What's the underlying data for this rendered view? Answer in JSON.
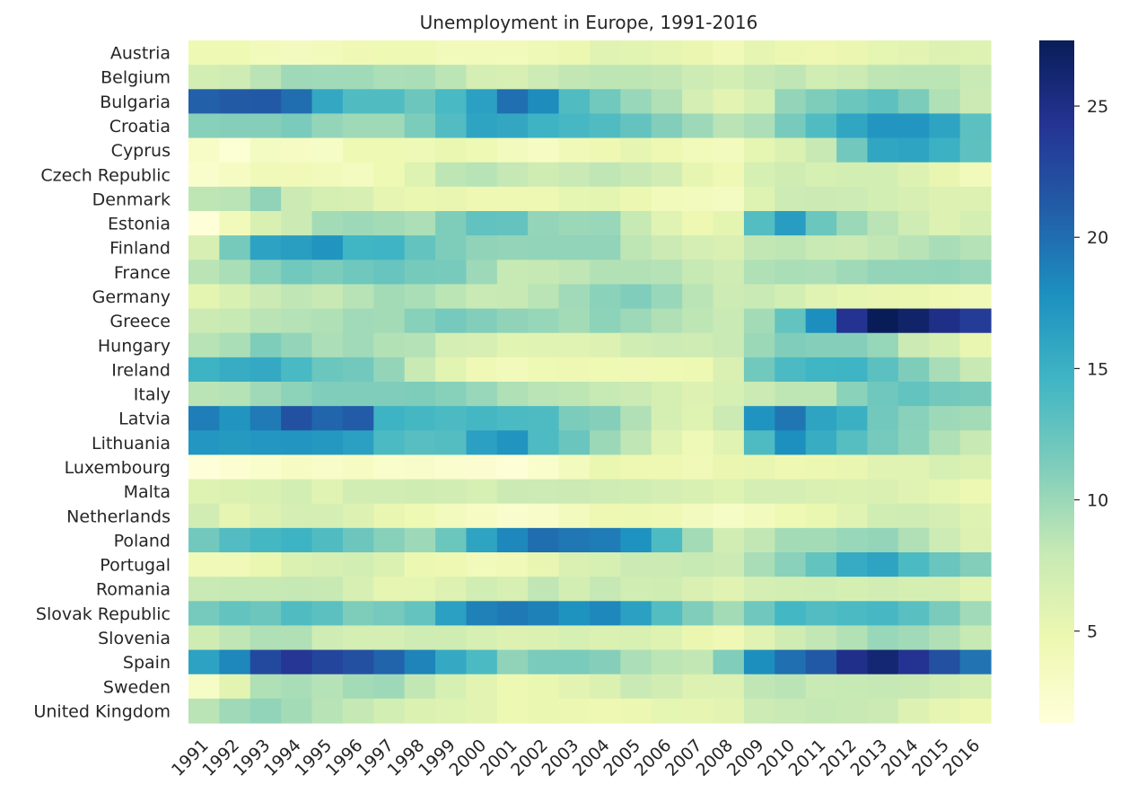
{
  "chart_data": {
    "type": "heatmap",
    "title": "Unemployment in Europe, 1991-2016",
    "xlabel": "",
    "ylabel": "",
    "x": [
      "1991",
      "1992",
      "1993",
      "1994",
      "1995",
      "1996",
      "1997",
      "1998",
      "1999",
      "2000",
      "2001",
      "2002",
      "2003",
      "2004",
      "2005",
      "2006",
      "2007",
      "2008",
      "2009",
      "2010",
      "2011",
      "2012",
      "2013",
      "2014",
      "2015",
      "2016"
    ],
    "y": [
      "Austria",
      "Belgium",
      "Bulgaria",
      "Croatia",
      "Cyprus",
      "Czech Republic",
      "Denmark",
      "Estonia",
      "Finland",
      "France",
      "Germany",
      "Greece",
      "Hungary",
      "Ireland",
      "Italy",
      "Latvia",
      "Lithuania",
      "Luxembourg",
      "Malta",
      "Netherlands",
      "Poland",
      "Portugal",
      "Romania",
      "Slovak Republic",
      "Slovenia",
      "Spain",
      "Sweden",
      "United Kingdom"
    ],
    "values": [
      [
        4.5,
        4.5,
        4.0,
        3.6,
        4.0,
        4.4,
        4.5,
        4.5,
        4.0,
        4.0,
        3.9,
        4.3,
        4.8,
        5.8,
        5.7,
        5.3,
        4.9,
        4.1,
        5.3,
        4.8,
        4.6,
        4.9,
        5.4,
        5.6,
        6.1,
        6.0
      ],
      [
        7.0,
        7.4,
        8.6,
        9.8,
        9.7,
        9.7,
        9.2,
        9.3,
        8.5,
        6.9,
        6.6,
        7.5,
        8.2,
        8.4,
        8.4,
        8.2,
        7.5,
        7.0,
        7.9,
        8.3,
        7.2,
        7.6,
        8.4,
        8.5,
        8.5,
        7.8
      ],
      [
        20.9,
        21.3,
        21.4,
        20.0,
        15.7,
        13.7,
        13.7,
        12.2,
        14.1,
        16.4,
        19.9,
        18.1,
        13.7,
        12.0,
        10.1,
        9.0,
        6.9,
        5.6,
        6.8,
        10.3,
        11.3,
        12.3,
        13.0,
        11.4,
        9.1,
        7.6
      ],
      [
        10.9,
        11.0,
        11.0,
        11.5,
        10.3,
        9.8,
        9.8,
        11.4,
        13.6,
        16.1,
        15.8,
        14.8,
        14.2,
        13.7,
        12.6,
        11.1,
        9.9,
        8.6,
        9.2,
        11.6,
        13.7,
        15.9,
        17.3,
        17.3,
        16.2,
        13.1
      ],
      [
        3.0,
        2.0,
        3.4,
        3.3,
        3.1,
        4.5,
        4.5,
        4.3,
        5.0,
        4.5,
        3.8,
        3.2,
        4.1,
        4.6,
        5.3,
        4.6,
        4.0,
        3.7,
        5.4,
        6.3,
        7.9,
        11.9,
        15.9,
        16.1,
        14.9,
        13.0
      ],
      [
        2.6,
        3.3,
        4.2,
        4.1,
        3.9,
        3.5,
        4.5,
        6.0,
        8.4,
        8.7,
        8.1,
        7.3,
        7.8,
        8.3,
        7.9,
        7.1,
        5.3,
        4.4,
        6.7,
        7.3,
        6.7,
        7.0,
        7.0,
        6.1,
        5.1,
        4.0
      ],
      [
        8.4,
        8.6,
        10.5,
        7.6,
        6.8,
        6.6,
        5.3,
        5.0,
        5.1,
        4.6,
        4.6,
        4.6,
        5.4,
        5.5,
        4.8,
        3.9,
        3.8,
        3.4,
        6.0,
        7.5,
        7.6,
        7.5,
        7.0,
        6.6,
        6.2,
        6.2
      ],
      [
        1.6,
        3.9,
        6.5,
        7.6,
        9.6,
        9.9,
        9.6,
        9.2,
        11.3,
        12.8,
        12.6,
        10.3,
        10.0,
        10.1,
        8.0,
        5.9,
        4.6,
        5.5,
        13.5,
        16.7,
        12.3,
        10.0,
        8.6,
        7.4,
        6.2,
        6.8
      ],
      [
        6.6,
        11.7,
        16.3,
        16.6,
        17.4,
        14.6,
        14.7,
        12.7,
        11.3,
        10.5,
        10.3,
        10.4,
        10.4,
        10.4,
        8.4,
        7.7,
        6.9,
        6.4,
        8.2,
        8.4,
        7.8,
        7.7,
        8.2,
        8.7,
        9.4,
        8.8
      ],
      [
        8.6,
        9.3,
        10.9,
        12.0,
        11.4,
        12.1,
        12.5,
        11.7,
        11.6,
        9.9,
        8.0,
        8.1,
        8.3,
        8.9,
        8.9,
        8.8,
        8.0,
        7.4,
        9.1,
        9.3,
        9.2,
        9.8,
        10.3,
        10.3,
        10.4,
        10.1
      ],
      [
        5.5,
        6.5,
        7.7,
        8.3,
        7.9,
        8.7,
        9.6,
        9.3,
        8.5,
        7.8,
        7.9,
        8.6,
        9.7,
        10.7,
        11.2,
        10.1,
        8.6,
        7.5,
        7.8,
        7.0,
        5.8,
        5.4,
        5.2,
        5.0,
        4.6,
        4.1
      ],
      [
        7.7,
        8.0,
        8.6,
        8.8,
        9.1,
        9.7,
        9.6,
        10.9,
        11.8,
        11.1,
        10.5,
        10.2,
        9.6,
        10.6,
        9.9,
        9.0,
        8.4,
        7.8,
        9.6,
        12.7,
        17.9,
        24.4,
        27.5,
        26.5,
        24.9,
        23.6
      ],
      [
        8.7,
        9.3,
        11.3,
        10.3,
        9.2,
        9.7,
        8.9,
        8.8,
        6.9,
        6.6,
        5.7,
        5.8,
        5.9,
        6.1,
        7.2,
        7.5,
        7.4,
        7.8,
        10.0,
        11.2,
        11.0,
        11.0,
        10.2,
        7.7,
        6.8,
        5.1
      ],
      [
        14.8,
        15.4,
        15.6,
        14.1,
        12.3,
        11.9,
        10.3,
        7.8,
        5.7,
        4.4,
        3.9,
        4.5,
        4.6,
        4.5,
        4.4,
        4.5,
        4.7,
        6.4,
        12.0,
        13.9,
        14.6,
        14.7,
        13.1,
        11.3,
        9.4,
        7.9
      ],
      [
        8.6,
        8.8,
        9.8,
        10.6,
        11.2,
        11.2,
        11.2,
        11.3,
        10.9,
        10.1,
        9.1,
        8.6,
        8.4,
        8.0,
        7.7,
        6.8,
        6.1,
        6.7,
        7.7,
        8.4,
        8.4,
        10.7,
        12.1,
        12.7,
        11.9,
        11.7
      ],
      [
        19.0,
        17.4,
        19.2,
        22.0,
        20.5,
        21.2,
        14.8,
        14.3,
        14.0,
        14.3,
        13.9,
        13.8,
        11.4,
        11.0,
        9.0,
        6.8,
        6.0,
        7.7,
        17.5,
        19.5,
        16.2,
        15.0,
        11.9,
        10.8,
        9.9,
        9.6
      ],
      [
        17.2,
        17.0,
        17.2,
        17.3,
        17.1,
        16.4,
        13.9,
        13.3,
        13.5,
        16.4,
        17.4,
        13.8,
        12.4,
        10.0,
        8.3,
        5.8,
        4.3,
        5.8,
        13.8,
        17.8,
        15.4,
        13.4,
        11.8,
        10.7,
        9.1,
        7.9
      ],
      [
        1.6,
        2.1,
        2.6,
        3.2,
        2.9,
        3.3,
        2.6,
        2.7,
        2.4,
        2.2,
        1.8,
        2.6,
        3.8,
        5.0,
        4.6,
        4.6,
        4.2,
        4.9,
        5.1,
        4.6,
        4.8,
        5.1,
        5.8,
        5.9,
        6.7,
        6.3
      ],
      [
        6.0,
        6.3,
        6.5,
        7.0,
        5.8,
        7.1,
        7.1,
        7.3,
        7.1,
        6.7,
        7.6,
        7.5,
        7.7,
        7.4,
        7.2,
        6.9,
        6.5,
        6.0,
        6.9,
        6.9,
        6.4,
        6.3,
        6.4,
        5.8,
        5.4,
        4.7
      ],
      [
        7.1,
        5.3,
        6.2,
        6.9,
        6.9,
        6.2,
        5.1,
        4.5,
        3.8,
        3.2,
        2.5,
        2.8,
        3.7,
        4.6,
        4.7,
        4.4,
        3.6,
        3.1,
        3.7,
        4.5,
        5.0,
        5.8,
        7.2,
        7.4,
        6.9,
        6.0
      ],
      [
        11.9,
        13.6,
        14.3,
        14.8,
        13.7,
        12.2,
        10.9,
        9.9,
        12.3,
        16.1,
        18.3,
        20.0,
        19.4,
        19.1,
        17.7,
        13.8,
        9.6,
        7.1,
        8.2,
        9.6,
        9.6,
        10.1,
        10.3,
        9.0,
        7.5,
        6.2
      ],
      [
        4.2,
        4.2,
        5.0,
        6.3,
        6.6,
        7.0,
        6.3,
        4.8,
        4.6,
        4.0,
        4.2,
        5.1,
        6.4,
        6.7,
        7.7,
        7.7,
        8.0,
        7.6,
        9.4,
        10.8,
        12.7,
        15.5,
        16.2,
        13.9,
        12.4,
        11.1
      ],
      [
        7.8,
        8.0,
        8.0,
        8.1,
        7.9,
        6.6,
        5.3,
        5.4,
        6.2,
        7.2,
        6.6,
        8.3,
        7.0,
        8.1,
        7.2,
        7.3,
        6.4,
        5.8,
        6.9,
        7.0,
        7.2,
        6.8,
        7.1,
        6.8,
        6.8,
        5.9
      ],
      [
        11.8,
        12.7,
        12.2,
        13.7,
        13.1,
        11.3,
        11.8,
        12.6,
        16.4,
        18.8,
        19.3,
        18.7,
        17.6,
        18.4,
        16.4,
        13.5,
        11.2,
        9.6,
        12.1,
        14.4,
        13.6,
        14.0,
        14.2,
        13.2,
        11.5,
        9.7
      ],
      [
        7.3,
        8.3,
        9.1,
        9.0,
        7.4,
        6.9,
        6.9,
        7.4,
        7.3,
        6.7,
        6.2,
        6.3,
        6.7,
        6.3,
        6.5,
        6.0,
        4.9,
        4.4,
        5.9,
        7.3,
        8.2,
        8.9,
        10.1,
        9.7,
        9.0,
        8.0
      ],
      [
        16.3,
        18.4,
        22.6,
        24.1,
        22.9,
        22.1,
        20.6,
        18.6,
        15.6,
        13.9,
        10.5,
        11.5,
        11.5,
        11.0,
        9.2,
        8.5,
        8.2,
        11.2,
        17.9,
        19.9,
        21.4,
        24.8,
        26.1,
        24.4,
        22.1,
        19.6
      ],
      [
        3.1,
        5.6,
        9.1,
        9.4,
        8.8,
        9.6,
        9.9,
        8.2,
        6.7,
        5.6,
        4.7,
        5.0,
        5.6,
        6.3,
        7.8,
        7.1,
        6.2,
        6.2,
        8.3,
        8.6,
        7.8,
        8.0,
        8.1,
        7.9,
        7.4,
        6.9
      ],
      [
        8.6,
        9.8,
        10.4,
        9.6,
        8.7,
        8.1,
        7.0,
        6.3,
        6.0,
        5.6,
        4.7,
        5.0,
        4.8,
        4.6,
        4.8,
        5.4,
        5.3,
        5.6,
        7.5,
        7.8,
        8.1,
        7.9,
        7.6,
        6.1,
        5.3,
        4.8
      ]
    ],
    "colorbar": {
      "ticks": [
        5,
        10,
        15,
        20,
        25
      ],
      "vmin": 1.5,
      "vmax": 27.5
    },
    "colormap": [
      "#ffffd9",
      "#edf8b1",
      "#c7e9b4",
      "#7fcdbb",
      "#41b6c4",
      "#1d91c0",
      "#225ea8",
      "#253494",
      "#081d58"
    ],
    "grid": false,
    "legend": "colorbar-right"
  }
}
